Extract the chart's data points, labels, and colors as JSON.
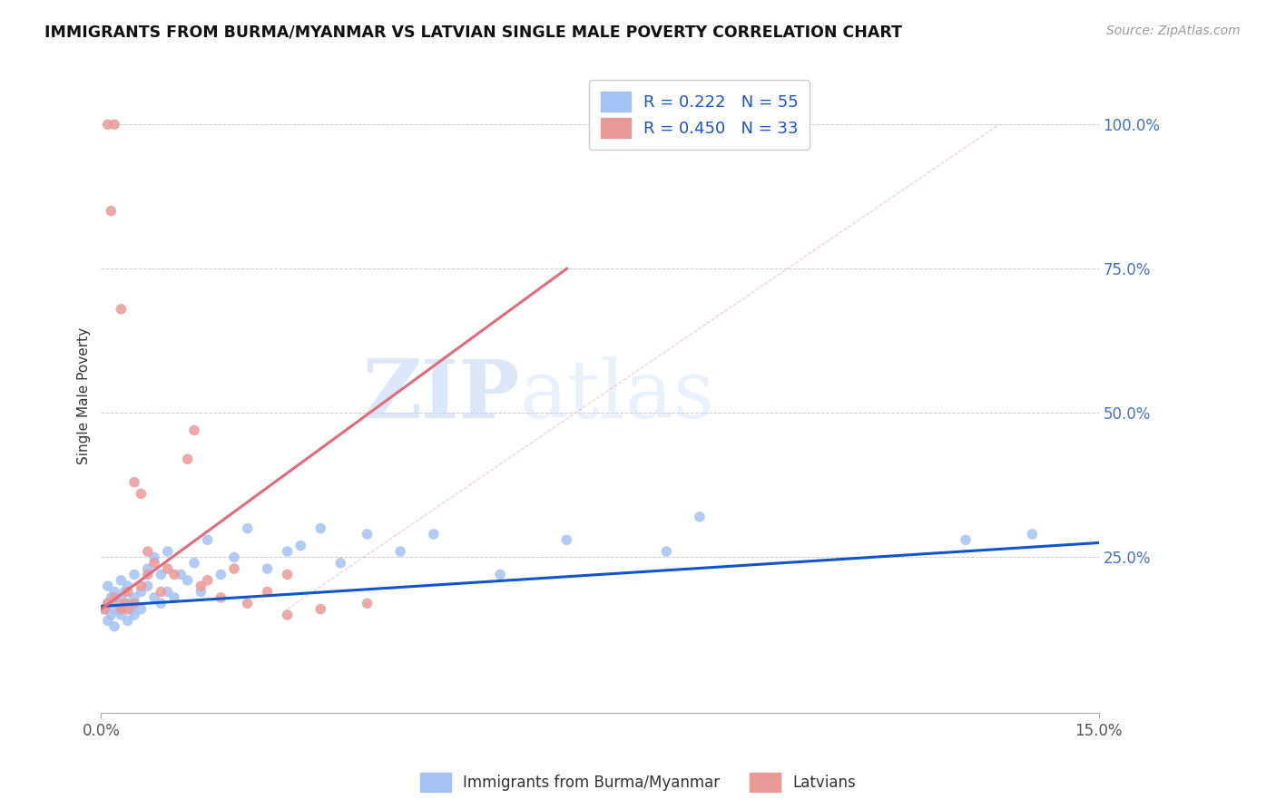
{
  "title": "IMMIGRANTS FROM BURMA/MYANMAR VS LATVIAN SINGLE MALE POVERTY CORRELATION CHART",
  "source": "Source: ZipAtlas.com",
  "ylabel": "Single Male Poverty",
  "xlim": [
    0.0,
    0.15
  ],
  "ylim": [
    -0.02,
    1.08
  ],
  "xticks": [
    0.0,
    0.15
  ],
  "xtick_labels": [
    "0.0%",
    "15.0%"
  ],
  "yticks_right": [
    0.25,
    0.5,
    0.75,
    1.0
  ],
  "ytick_labels_right": [
    "25.0%",
    "50.0%",
    "75.0%",
    "100.0%"
  ],
  "r_blue": 0.222,
  "n_blue": 55,
  "r_pink": 0.45,
  "n_pink": 33,
  "blue_color": "#a4c2f4",
  "pink_color": "#ea9999",
  "trend_blue": "#1155cc",
  "trend_pink": "#e06c7b",
  "legend_label_blue": "Immigrants from Burma/Myanmar",
  "legend_label_pink": "Latvians",
  "watermark_zip": "ZIP",
  "watermark_atlas": "atlas",
  "grid_color": "#cccccc",
  "blue_points_x": [
    0.0005,
    0.001,
    0.001,
    0.001,
    0.0015,
    0.0015,
    0.002,
    0.002,
    0.002,
    0.0025,
    0.003,
    0.003,
    0.003,
    0.003,
    0.0035,
    0.004,
    0.004,
    0.004,
    0.0045,
    0.005,
    0.005,
    0.005,
    0.006,
    0.006,
    0.007,
    0.007,
    0.008,
    0.008,
    0.009,
    0.009,
    0.01,
    0.01,
    0.011,
    0.012,
    0.013,
    0.014,
    0.015,
    0.016,
    0.018,
    0.02,
    0.022,
    0.025,
    0.028,
    0.03,
    0.033,
    0.036,
    0.04,
    0.045,
    0.05,
    0.06,
    0.07,
    0.085,
    0.09,
    0.13,
    0.14
  ],
  "blue_points_y": [
    0.16,
    0.14,
    0.17,
    0.2,
    0.15,
    0.18,
    0.13,
    0.16,
    0.19,
    0.17,
    0.15,
    0.18,
    0.21,
    0.16,
    0.19,
    0.14,
    0.17,
    0.2,
    0.16,
    0.15,
    0.18,
    0.22,
    0.16,
    0.19,
    0.2,
    0.23,
    0.18,
    0.25,
    0.17,
    0.22,
    0.19,
    0.26,
    0.18,
    0.22,
    0.21,
    0.24,
    0.19,
    0.28,
    0.22,
    0.25,
    0.3,
    0.23,
    0.26,
    0.27,
    0.3,
    0.24,
    0.29,
    0.26,
    0.29,
    0.22,
    0.28,
    0.26,
    0.32,
    0.28,
    0.29
  ],
  "pink_points_x": [
    0.0005,
    0.001,
    0.001,
    0.0015,
    0.002,
    0.002,
    0.003,
    0.003,
    0.0035,
    0.004,
    0.004,
    0.005,
    0.005,
    0.006,
    0.006,
    0.007,
    0.007,
    0.008,
    0.009,
    0.01,
    0.011,
    0.013,
    0.014,
    0.015,
    0.016,
    0.018,
    0.02,
    0.022,
    0.025,
    0.028,
    0.033,
    0.04,
    0.028
  ],
  "pink_points_y": [
    0.16,
    0.17,
    1.0,
    0.85,
    1.0,
    0.18,
    0.16,
    0.68,
    0.17,
    0.16,
    0.19,
    0.38,
    0.17,
    0.36,
    0.2,
    0.26,
    0.22,
    0.24,
    0.19,
    0.23,
    0.22,
    0.42,
    0.47,
    0.2,
    0.21,
    0.18,
    0.23,
    0.17,
    0.19,
    0.22,
    0.16,
    0.17,
    0.15
  ],
  "blue_trend_x": [
    0.0,
    0.15
  ],
  "blue_trend_y": [
    0.165,
    0.275
  ],
  "pink_trend_x": [
    0.0,
    0.07
  ],
  "pink_trend_y": [
    0.16,
    0.75
  ]
}
